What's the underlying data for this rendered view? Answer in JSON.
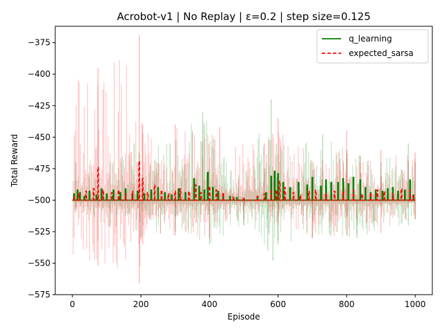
{
  "chart_data": {
    "type": "line",
    "title": "Acrobot-v1 | No Replay | ε=0.2 | step size=0.125",
    "xlabel": "Episode",
    "ylabel": "Total Reward",
    "xlim": [
      -50,
      1050
    ],
    "ylim": [
      -575,
      -362
    ],
    "xticks": [
      0,
      200,
      400,
      600,
      800,
      1000
    ],
    "yticks": [
      -375,
      -400,
      -425,
      -450,
      -475,
      -500,
      -525,
      -550,
      -575
    ],
    "grid": false,
    "legend": "top-right",
    "series": [
      {
        "name": "q_learning",
        "color": "#008000",
        "style": "solid",
        "baseline": -500,
        "bumps": [
          [
            5,
            -495
          ],
          [
            15,
            -492
          ],
          [
            22,
            -494
          ],
          [
            35,
            -497
          ],
          [
            50,
            -493
          ],
          [
            70,
            -496
          ],
          [
            85,
            -491
          ],
          [
            100,
            -495
          ],
          [
            120,
            -492
          ],
          [
            140,
            -494
          ],
          [
            155,
            -491
          ],
          [
            175,
            -496
          ],
          [
            190,
            -493
          ],
          [
            210,
            -495
          ],
          [
            230,
            -492
          ],
          [
            250,
            -490
          ],
          [
            270,
            -494
          ],
          [
            290,
            -496
          ],
          [
            310,
            -491
          ],
          [
            330,
            -494
          ],
          [
            355,
            -483
          ],
          [
            370,
            -489
          ],
          [
            385,
            -492
          ],
          [
            395,
            -478
          ],
          [
            410,
            -490
          ],
          [
            425,
            -493
          ],
          [
            440,
            -495
          ],
          [
            460,
            -497
          ],
          [
            480,
            -498
          ],
          [
            500,
            -499
          ],
          [
            540,
            -497
          ],
          [
            565,
            -494
          ],
          [
            580,
            -481
          ],
          [
            590,
            -477
          ],
          [
            600,
            -479
          ],
          [
            615,
            -486
          ],
          [
            635,
            -490
          ],
          [
            660,
            -486
          ],
          [
            685,
            -488
          ],
          [
            700,
            -482
          ],
          [
            725,
            -489
          ],
          [
            740,
            -484
          ],
          [
            755,
            -486
          ],
          [
            775,
            -486
          ],
          [
            790,
            -483
          ],
          [
            805,
            -487
          ],
          [
            820,
            -482
          ],
          [
            840,
            -484
          ],
          [
            855,
            -490
          ],
          [
            870,
            -494
          ],
          [
            885,
            -492
          ],
          [
            905,
            -493
          ],
          [
            920,
            -491
          ],
          [
            935,
            -490
          ],
          [
            950,
            -493
          ],
          [
            970,
            -492
          ],
          [
            985,
            -484
          ],
          [
            995,
            -496
          ]
        ],
        "band_max": [
          [
            10,
            -470
          ],
          [
            110,
            -470
          ],
          [
            180,
            -455
          ],
          [
            285,
            -455
          ],
          [
            380,
            -430
          ],
          [
            485,
            -480
          ],
          [
            580,
            -420
          ],
          [
            595,
            -455
          ],
          [
            730,
            -448
          ],
          [
            800,
            -460
          ],
          [
            900,
            -470
          ],
          [
            980,
            -455
          ],
          [
            1000,
            -470
          ]
        ],
        "band_min": [
          [
            10,
            -510
          ],
          [
            110,
            -520
          ],
          [
            200,
            -530
          ],
          [
            300,
            -525
          ],
          [
            400,
            -535
          ],
          [
            500,
            -520
          ],
          [
            570,
            -540
          ],
          [
            585,
            -548
          ],
          [
            600,
            -535
          ],
          [
            700,
            -530
          ],
          [
            830,
            -530
          ],
          [
            980,
            -520
          ],
          [
            1000,
            -515
          ]
        ]
      },
      {
        "name": "expected_sarsa",
        "color": "#ff0000",
        "style": "dashed",
        "baseline": -500,
        "bumps": [
          [
            5,
            -497
          ],
          [
            20,
            -494
          ],
          [
            40,
            -493
          ],
          [
            62,
            -491
          ],
          [
            75,
            -474
          ],
          [
            90,
            -492
          ],
          [
            115,
            -494
          ],
          [
            135,
            -492
          ],
          [
            155,
            -495
          ],
          [
            175,
            -493
          ],
          [
            195,
            -469
          ],
          [
            205,
            -483
          ],
          [
            220,
            -494
          ],
          [
            240,
            -488
          ],
          [
            260,
            -492
          ],
          [
            280,
            -495
          ],
          [
            300,
            -493
          ],
          [
            315,
            -491
          ],
          [
            340,
            -493
          ],
          [
            360,
            -488
          ],
          [
            375,
            -494
          ],
          [
            400,
            -489
          ],
          [
            420,
            -492
          ],
          [
            440,
            -494
          ],
          [
            470,
            -497
          ],
          [
            500,
            -498
          ],
          [
            540,
            -497
          ],
          [
            560,
            -495
          ],
          [
            580,
            -493
          ],
          [
            595,
            -492
          ],
          [
            605,
            -485
          ],
          [
            620,
            -490
          ],
          [
            645,
            -494
          ],
          [
            665,
            -496
          ],
          [
            690,
            -493
          ],
          [
            710,
            -492
          ],
          [
            740,
            -494
          ],
          [
            765,
            -493
          ],
          [
            790,
            -493
          ],
          [
            820,
            -492
          ],
          [
            845,
            -495
          ],
          [
            870,
            -494
          ],
          [
            890,
            -492
          ],
          [
            910,
            -493
          ],
          [
            935,
            -495
          ],
          [
            960,
            -491
          ],
          [
            985,
            -492
          ],
          [
            995,
            -497
          ]
        ],
        "band_max": [
          [
            75,
            -395
          ],
          [
            195,
            -369
          ],
          [
            205,
            -440
          ],
          [
            300,
            -440
          ],
          [
            430,
            -442
          ],
          [
            560,
            -455
          ],
          [
            600,
            -435
          ],
          [
            730,
            -468
          ],
          [
            800,
            -445
          ],
          [
            840,
            -465
          ],
          [
            900,
            -460
          ],
          [
            1000,
            -462
          ]
        ],
        "band_min": [
          [
            75,
            -552
          ],
          [
            195,
            -566
          ],
          [
            205,
            -535
          ],
          [
            300,
            -528
          ],
          [
            400,
            -530
          ],
          [
            500,
            -515
          ],
          [
            600,
            -520
          ],
          [
            700,
            -530
          ],
          [
            800,
            -528
          ],
          [
            900,
            -526
          ],
          [
            1000,
            -515
          ]
        ]
      }
    ]
  }
}
